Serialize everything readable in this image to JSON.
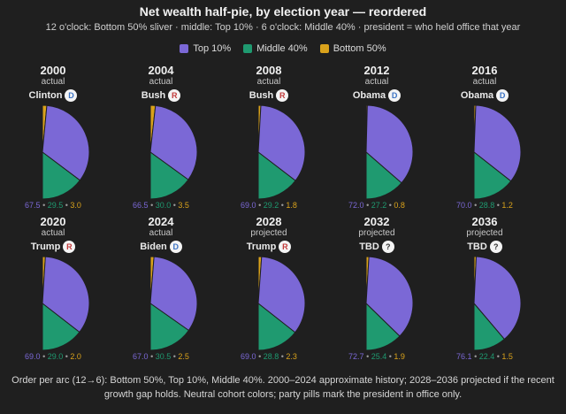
{
  "title": "Net wealth half-pie, by election year — reordered",
  "subtitle": "12 o'clock: Bottom 50% sliver · middle: Top 10% · 6 o'clock: Middle 40% · president = who held office that year",
  "legend": [
    {
      "label": "Top 10%",
      "color": "#7b68d6"
    },
    {
      "label": "Middle 40%",
      "color": "#1f9a70"
    },
    {
      "label": "Bottom 50%",
      "color": "#d9a21b"
    }
  ],
  "colors": {
    "top10": "#7b68d6",
    "middle40": "#1f9a70",
    "bottom50": "#d9a21b",
    "dem": "#3b72c4",
    "rep": "#c23b3b",
    "tbd": "#333333"
  },
  "footer": {
    "line1": "Order per arc (12→6): Bottom 50%, Top 10%, Middle 40%. 2000–2024 approximate history; 2028–2036 projected if the recent",
    "line2": "growth gap holds. Neutral cohort colors; party pills mark the president in office only."
  },
  "chart_data": {
    "type": "pie",
    "variant": "half-pie small multiples",
    "unit": "% of net wealth",
    "series_order": [
      "Bottom 50%",
      "Top 10%",
      "Middle 40%"
    ],
    "panels": [
      {
        "year": "2000",
        "status": "actual",
        "president": "Clinton",
        "party": "D",
        "top10": 67.5,
        "middle40": 29.5,
        "bottom50": 3.0,
        "top10_label": "67.5",
        "middle40_label": "29.5",
        "bottom50_label": "3.0"
      },
      {
        "year": "2004",
        "status": "actual",
        "president": "Bush",
        "party": "R",
        "top10": 66.5,
        "middle40": 30.0,
        "bottom50": 3.5,
        "top10_label": "66.5",
        "middle40_label": "30.0",
        "bottom50_label": "3.5"
      },
      {
        "year": "2008",
        "status": "actual",
        "president": "Bush",
        "party": "R",
        "top10": 69.0,
        "middle40": 29.2,
        "bottom50": 1.8,
        "top10_label": "69.0",
        "middle40_label": "29.2",
        "bottom50_label": "1.8"
      },
      {
        "year": "2012",
        "status": "actual",
        "president": "Obama",
        "party": "D",
        "top10": 72.0,
        "middle40": 27.2,
        "bottom50": 0.8,
        "top10_label": "72.0",
        "middle40_label": "27.2",
        "bottom50_label": "0.8"
      },
      {
        "year": "2016",
        "status": "actual",
        "president": "Obama",
        "party": "D",
        "top10": 70.0,
        "middle40": 28.8,
        "bottom50": 1.2,
        "top10_label": "70.0",
        "middle40_label": "28.8",
        "bottom50_label": "1.2"
      },
      {
        "year": "2020",
        "status": "actual",
        "president": "Trump",
        "party": "R",
        "top10": 69.0,
        "middle40": 29.0,
        "bottom50": 2.0,
        "top10_label": "69.0",
        "middle40_label": "29.0",
        "bottom50_label": "2.0"
      },
      {
        "year": "2024",
        "status": "actual",
        "president": "Biden",
        "party": "D",
        "top10": 67.0,
        "middle40": 30.5,
        "bottom50": 2.5,
        "top10_label": "67.0",
        "middle40_label": "30.5",
        "bottom50_label": "2.5"
      },
      {
        "year": "2028",
        "status": "projected",
        "president": "Trump",
        "party": "R",
        "top10": 69.0,
        "middle40": 28.8,
        "bottom50": 2.3,
        "top10_label": "69.0",
        "middle40_label": "28.8",
        "bottom50_label": "2.3"
      },
      {
        "year": "2032",
        "status": "projected",
        "president": "TBD",
        "party": "?",
        "top10": 72.7,
        "middle40": 25.4,
        "bottom50": 1.9,
        "top10_label": "72.7",
        "middle40_label": "25.4",
        "bottom50_label": "1.9"
      },
      {
        "year": "2036",
        "status": "projected",
        "president": "TBD",
        "party": "?",
        "top10": 76.1,
        "middle40": 22.4,
        "bottom50": 1.5,
        "top10_label": "76.1",
        "middle40_label": "22.4",
        "bottom50_label": "1.5"
      }
    ]
  }
}
